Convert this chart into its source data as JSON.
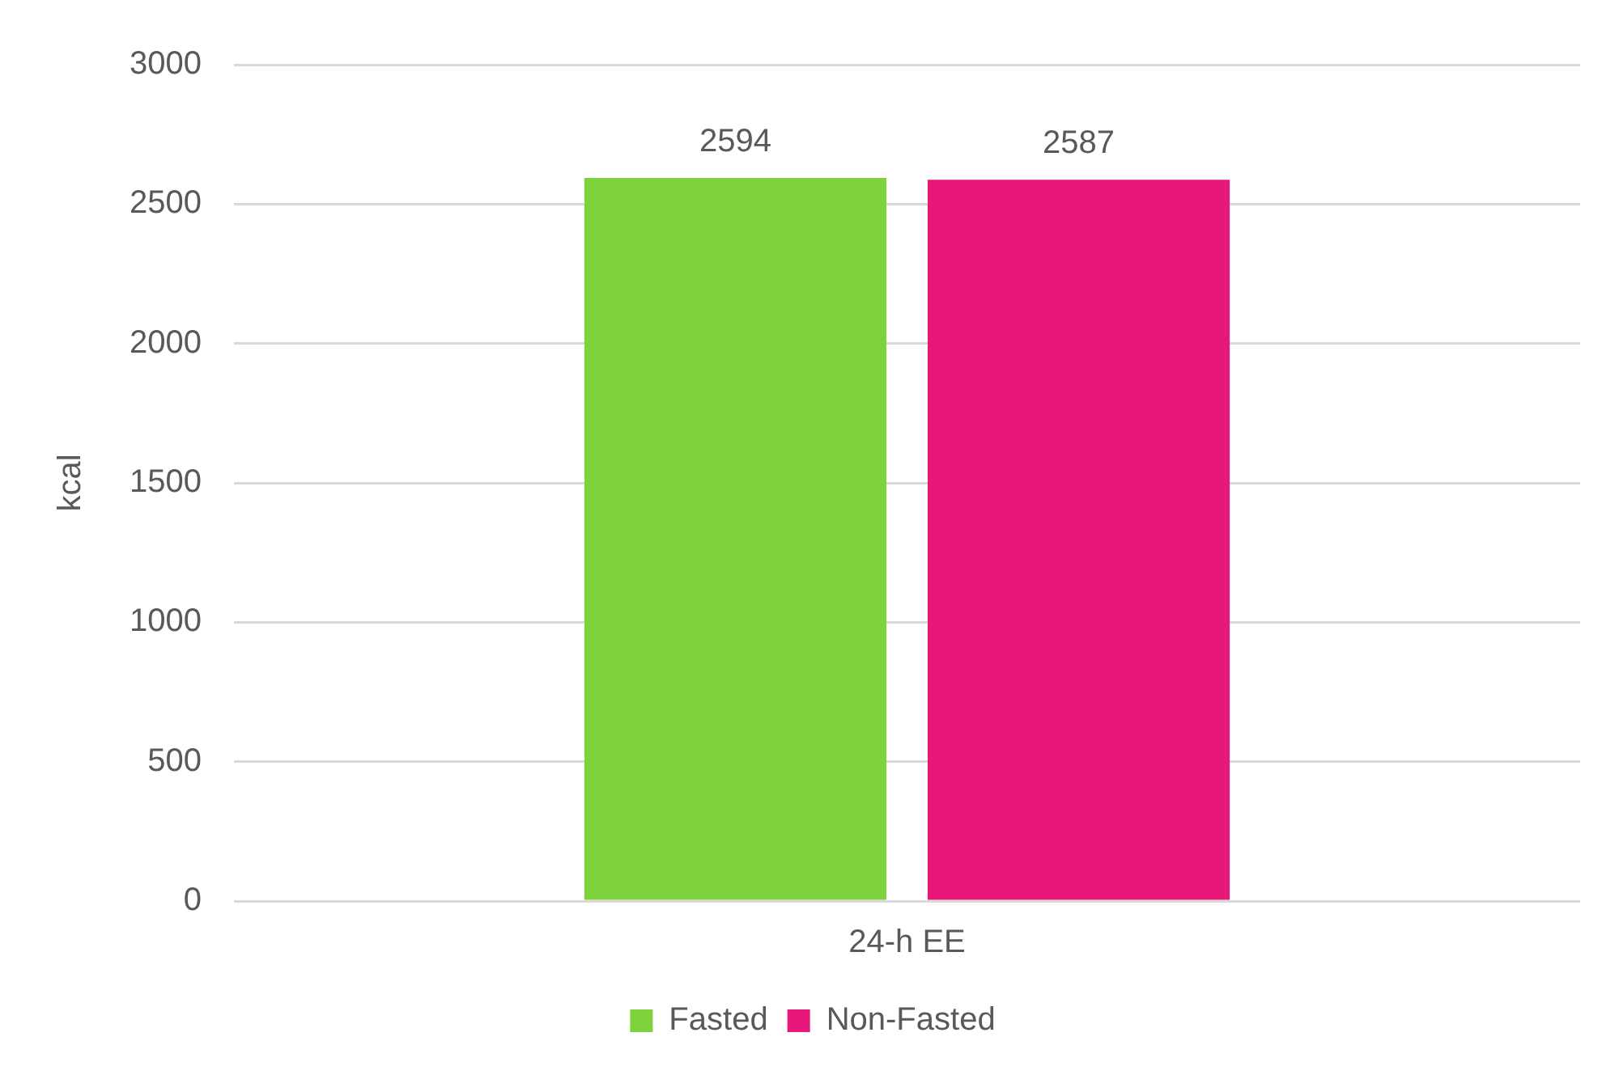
{
  "chart_data": {
    "type": "bar",
    "ylabel": "kcal",
    "categories": [
      "24-h EE"
    ],
    "series": [
      {
        "name": "Fasted",
        "color": "#7ed23c",
        "values": [
          2594
        ]
      },
      {
        "name": "Non-Fasted",
        "color": "#e8177a",
        "values": [
          2587
        ]
      }
    ],
    "ylim": [
      0,
      3000
    ],
    "yticks": [
      0,
      500,
      1000,
      1500,
      2000,
      2500,
      3000
    ],
    "grid": "y",
    "legend": "bottom",
    "data_labels": true
  }
}
